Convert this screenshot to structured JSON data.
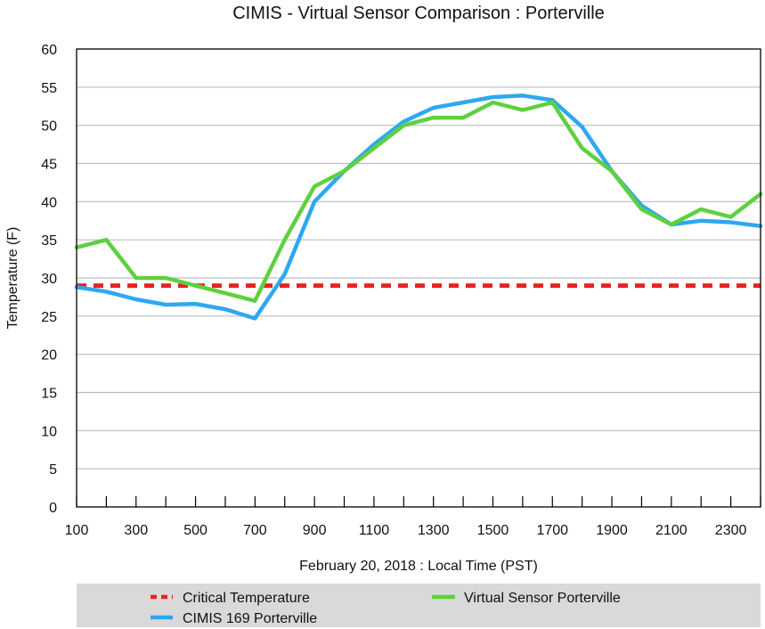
{
  "chart_data": {
    "type": "line",
    "title": "CIMIS - Virtual Sensor Comparison : Porterville",
    "xlabel": "February 20, 2018 : Local Time (PST)",
    "ylabel": "Temperature (F)",
    "x": [
      100,
      200,
      300,
      400,
      500,
      600,
      700,
      800,
      900,
      1000,
      1100,
      1200,
      1300,
      1400,
      1500,
      1600,
      1700,
      1800,
      1900,
      2000,
      2100,
      2200,
      2300,
      2400
    ],
    "x_tick_labels": [
      "100",
      "300",
      "500",
      "700",
      "900",
      "1100",
      "1300",
      "1500",
      "1700",
      "1900",
      "2100",
      "2300"
    ],
    "x_tick_values": [
      100,
      300,
      500,
      700,
      900,
      1100,
      1300,
      1500,
      1700,
      1900,
      2100,
      2300
    ],
    "ylim": [
      0,
      60
    ],
    "y_ticks": [
      0,
      5,
      10,
      15,
      20,
      25,
      30,
      35,
      40,
      45,
      50,
      55,
      60
    ],
    "grid": true,
    "legend_position": "bottom",
    "series": [
      {
        "name": "Critical Temperature",
        "color": "#e8231f",
        "style": "dashed",
        "values": [
          29,
          29,
          29,
          29,
          29,
          29,
          29,
          29,
          29,
          29,
          29,
          29,
          29,
          29,
          29,
          29,
          29,
          29,
          29,
          29,
          29,
          29,
          29,
          29
        ]
      },
      {
        "name": "Virtual Sensor Porterville",
        "color": "#5fd03f",
        "style": "solid",
        "values": [
          34,
          35,
          30,
          30,
          29,
          28,
          27,
          35,
          42,
          44,
          47,
          50,
          51,
          51,
          53,
          52,
          53,
          47,
          44,
          39,
          37,
          39,
          38,
          41
        ]
      },
      {
        "name": "CIMIS 169 Porterville",
        "color": "#2ea8f0",
        "style": "solid",
        "values": [
          28.8,
          28.2,
          27.2,
          26.5,
          26.6,
          25.9,
          24.7,
          30.5,
          40,
          44,
          47.5,
          50.5,
          52.3,
          53,
          53.7,
          53.9,
          53.3,
          49.8,
          44,
          39.5,
          37,
          37.5,
          37.3,
          36.8
        ]
      }
    ],
    "legend": [
      {
        "name": "Critical Temperature",
        "color": "#e8231f",
        "style": "dashed"
      },
      {
        "name": "Virtual Sensor Porterville",
        "color": "#5fd03f",
        "style": "solid"
      },
      {
        "name": "CIMIS 169 Porterville",
        "color": "#2ea8f0",
        "style": "solid"
      }
    ]
  }
}
